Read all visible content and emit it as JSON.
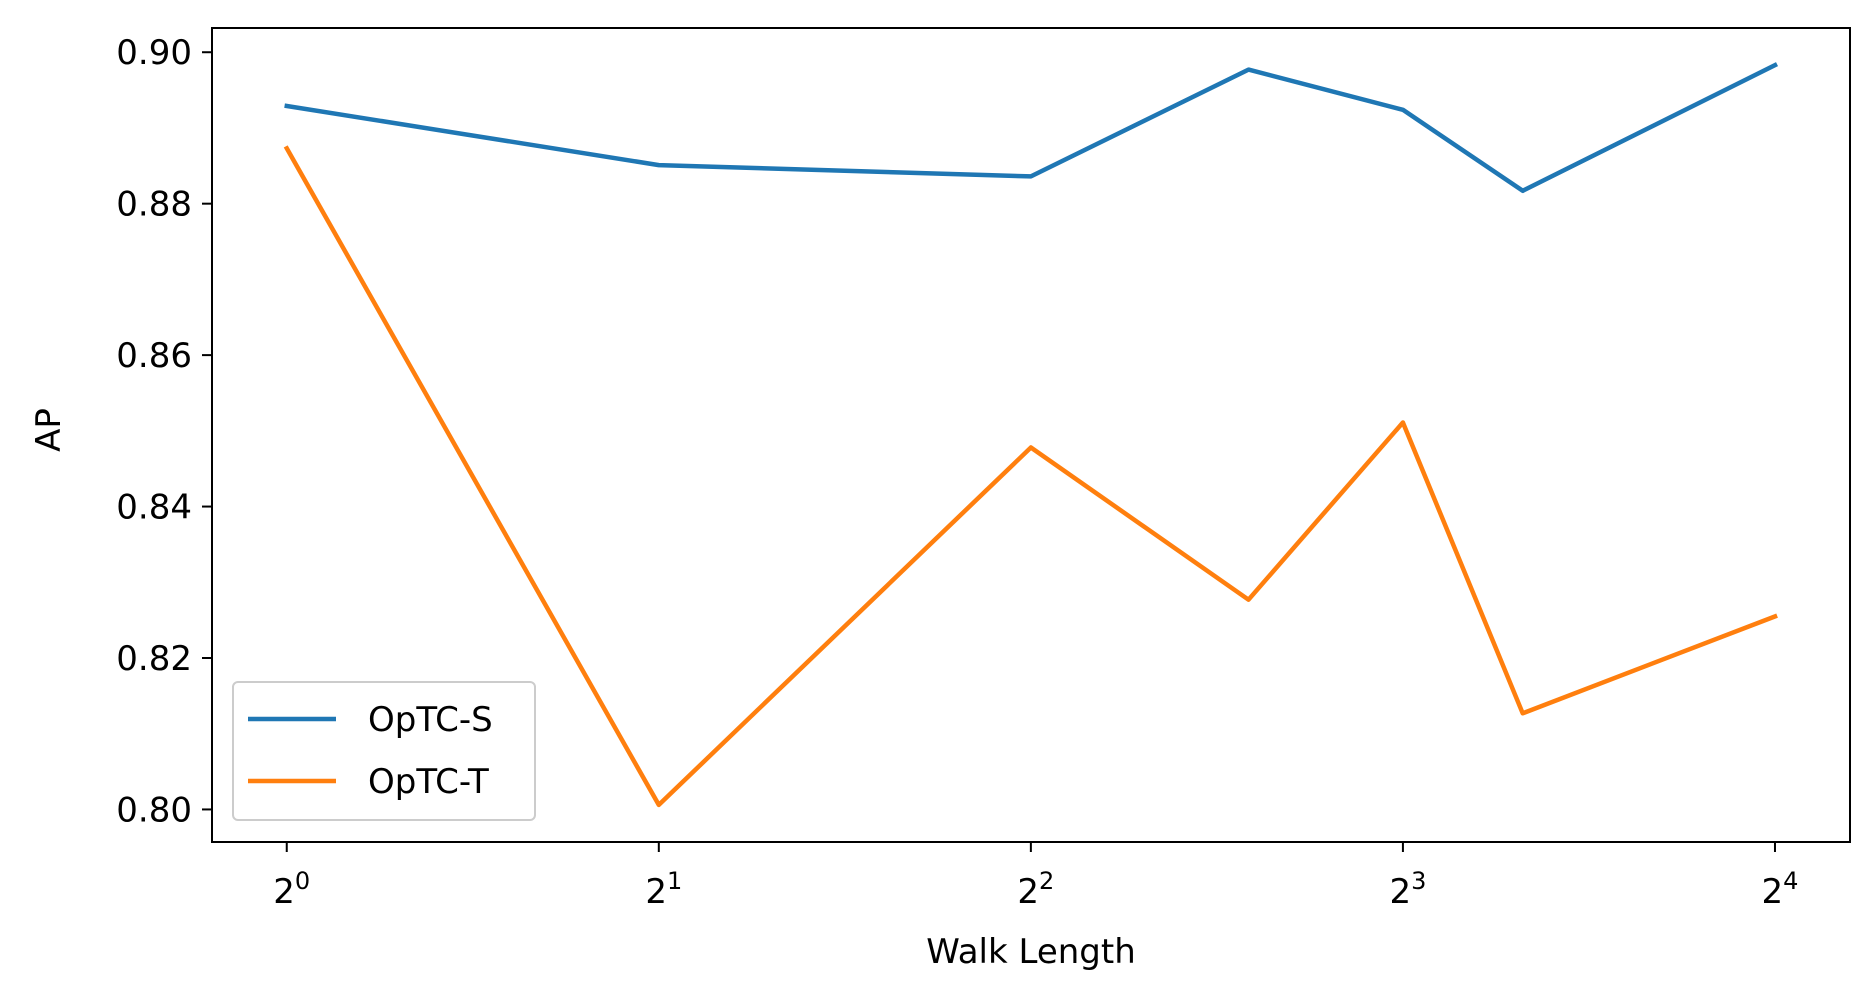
{
  "chart_data": {
    "type": "line",
    "xlabel": "Walk Length",
    "ylabel": "AP",
    "x_scale": "log2",
    "x": [
      1,
      2,
      4,
      6,
      8,
      10,
      16
    ],
    "xlim": [
      0.87,
      18.4
    ],
    "ylim": [
      0.7957,
      0.9032
    ],
    "x_ticks": [
      {
        "value": 1,
        "base": "2",
        "exp": "0"
      },
      {
        "value": 2,
        "base": "2",
        "exp": "1"
      },
      {
        "value": 4,
        "base": "2",
        "exp": "2"
      },
      {
        "value": 8,
        "base": "2",
        "exp": "3"
      },
      {
        "value": 16,
        "base": "2",
        "exp": "4"
      }
    ],
    "y_ticks": [
      {
        "value": 0.8,
        "label": "0.80"
      },
      {
        "value": 0.82,
        "label": "0.82"
      },
      {
        "value": 0.84,
        "label": "0.84"
      },
      {
        "value": 0.86,
        "label": "0.86"
      },
      {
        "value": 0.88,
        "label": "0.88"
      },
      {
        "value": 0.9,
        "label": "0.90"
      }
    ],
    "series": [
      {
        "name": "OpTC-S",
        "color": "#1f77b4",
        "values": [
          0.8929,
          0.8851,
          0.8836,
          0.8977,
          0.8924,
          0.8817,
          0.8983
        ]
      },
      {
        "name": "OpTC-T",
        "color": "#ff7f0e",
        "values": [
          0.8873,
          0.8006,
          0.8478,
          0.8277,
          0.8511,
          0.8127,
          0.8255
        ]
      }
    ],
    "grid": false,
    "legend": "lower-left"
  }
}
